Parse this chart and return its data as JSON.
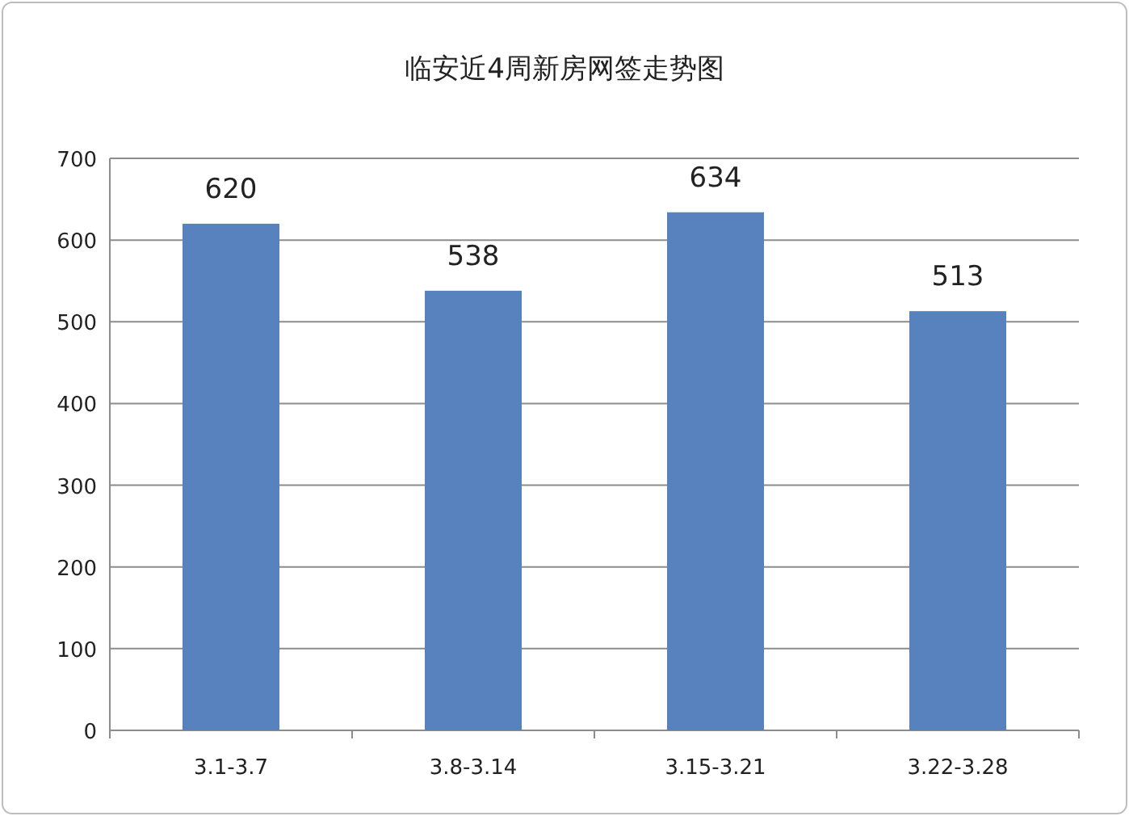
{
  "chart_data": {
    "type": "bar",
    "title": "临安近4周新房网签走势图",
    "categories": [
      "3.1-3.7",
      "3.8-3.14",
      "3.15-3.21",
      "3.22-3.28"
    ],
    "values": [
      620,
      538,
      634,
      513
    ],
    "color": "#5882be",
    "ylim": [
      0,
      700
    ],
    "yticks": [
      0,
      100,
      200,
      300,
      400,
      500,
      600,
      700
    ],
    "grid": "y",
    "data_labels": true
  }
}
